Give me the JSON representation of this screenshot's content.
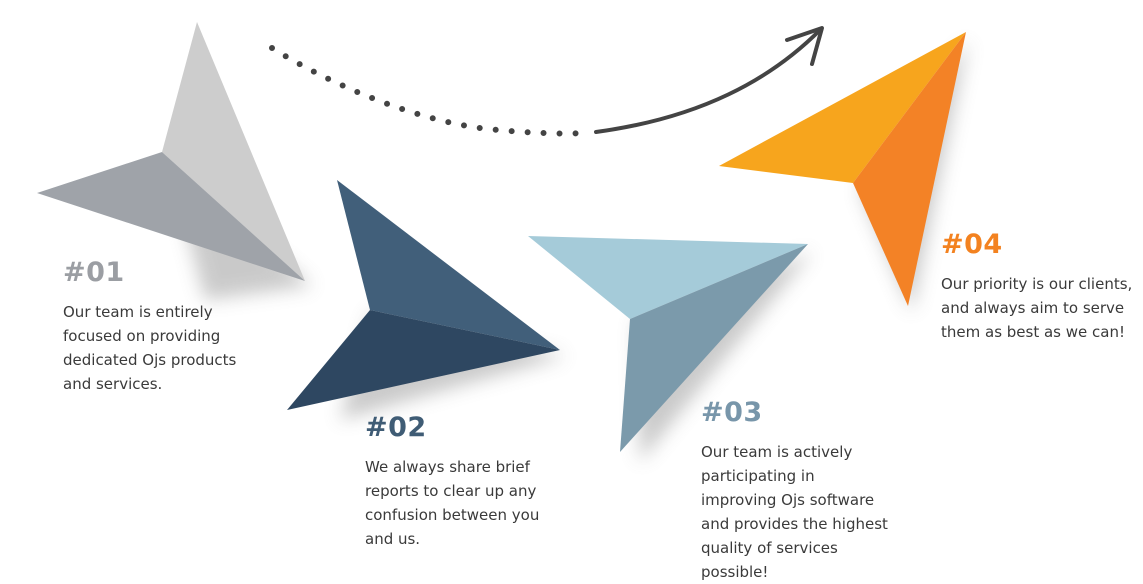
{
  "steps": [
    {
      "number": "#01",
      "text": "Our team is entirely\nfocused on providing\ndedicated Ojs products\nand services.",
      "colors": {
        "number": "#9b9ea3",
        "light": "#cdcdcd",
        "dark": "#9fa3a9"
      }
    },
    {
      "number": "#02",
      "text": "We always share brief\nreports to clear up any\nconfusion between you\nand us.",
      "colors": {
        "number": "#3f5c75",
        "light": "#415f7a",
        "dark": "#2e4761"
      }
    },
    {
      "number": "#03",
      "text": "Our team is actively\nparticipating in\nimproving Ojs software\nand provides the highest\nquality of services\npossible!",
      "colors": {
        "number": "#7896aa",
        "light": "#a5cbd9",
        "dark": "#7b9aab"
      }
    },
    {
      "number": "#04",
      "text": "Our priority is our clients,\nand always aim to serve\nthem as best as we can!",
      "colors": {
        "number": "#f38220",
        "light": "#f7a51d",
        "dark": "#f38226"
      }
    }
  ],
  "path_color": "#444444",
  "shadow_color": "#8a8a8a"
}
